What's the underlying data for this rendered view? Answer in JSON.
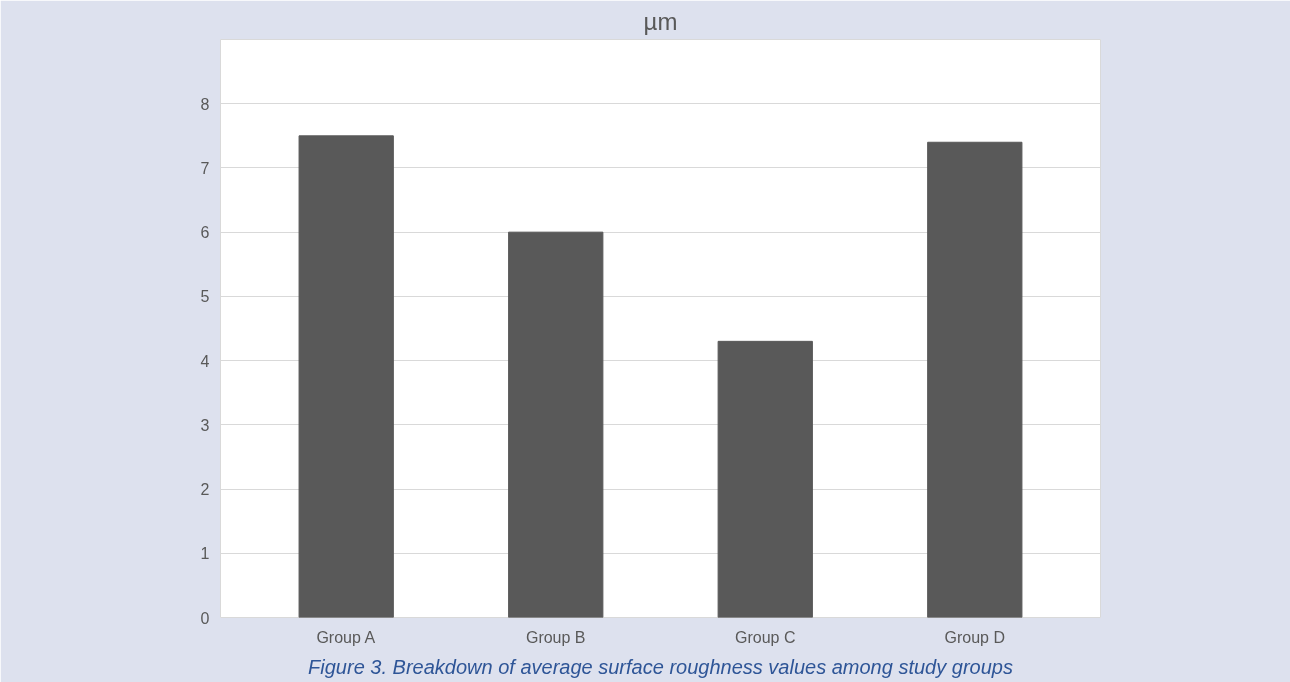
{
  "chart_data": {
    "type": "bar",
    "title": "µm",
    "categories": [
      "Group A",
      "Group B",
      "Group C",
      "Group D"
    ],
    "values": [
      7.5,
      6.0,
      4.3,
      7.4
    ],
    "color": "#595959",
    "ylim": [
      0,
      9
    ],
    "yticks": [
      0,
      1,
      2,
      3,
      4,
      5,
      6,
      7,
      8
    ],
    "grid": "y",
    "annotations": [
      "Figure 3. Breakdown of average surface roughness values among study groups"
    ]
  }
}
